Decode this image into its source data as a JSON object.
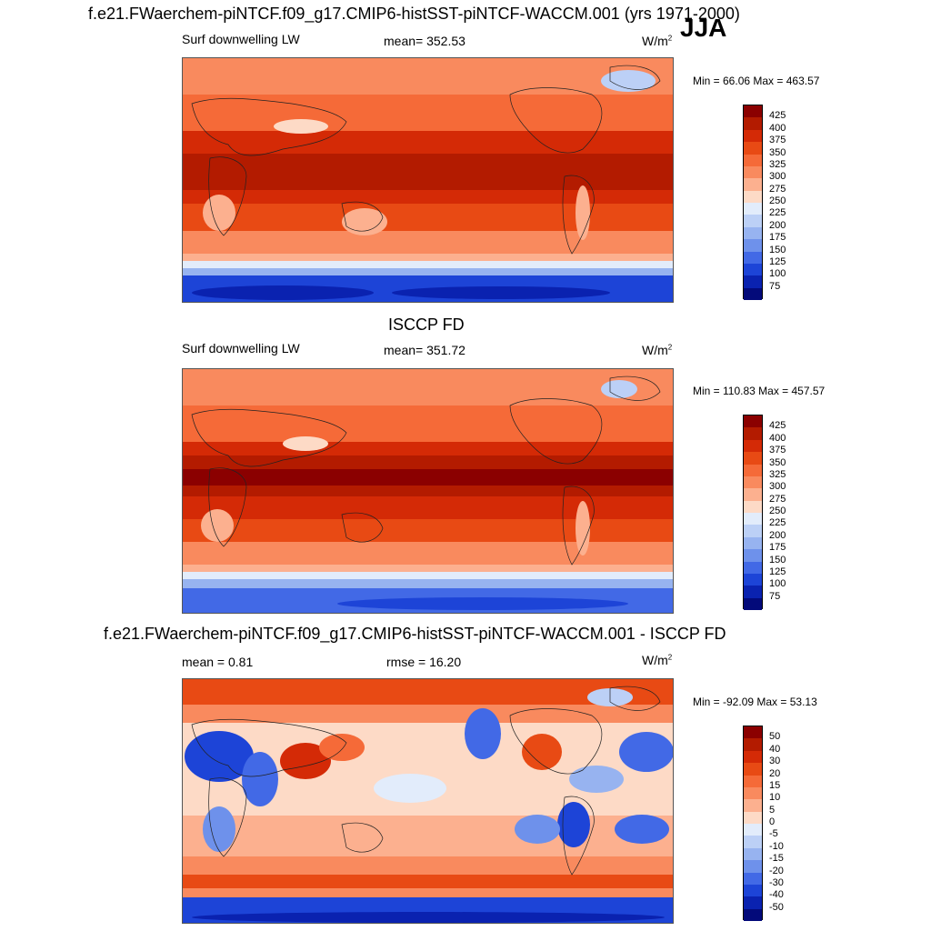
{
  "header": {
    "main_title": "f.e21.FWaerchem-piNTCF.f09_g17.CMIP6-histSST-piNTCF-WACCM.001 (yrs 1971-2000)",
    "season": "JJA"
  },
  "panels": [
    {
      "id": "model",
      "title": "",
      "left_label": "Surf downwelling LW",
      "center_label": "mean= 352.53",
      "units": "W/m",
      "units_sup": "2",
      "minmax": "Min =  66.06 Max = 463.57"
    },
    {
      "id": "obs",
      "title": "ISCCP FD",
      "left_label": "Surf downwelling LW",
      "center_label": "mean= 351.72",
      "units": "W/m",
      "units_sup": "2",
      "minmax": "Min = 110.83 Max = 457.57"
    },
    {
      "id": "diff",
      "title": "f.e21.FWaerchem-piNTCF.f09_g17.CMIP6-histSST-piNTCF-WACCM.001 - ISCCP FD",
      "left_label": "mean =   0.81",
      "center_label": "rmse =  16.20",
      "units": "W/m",
      "units_sup": "2",
      "minmax": "Min = -92.09 Max =  53.13"
    }
  ],
  "colorbars": {
    "absolute": {
      "labels": [
        "425",
        "400",
        "375",
        "350",
        "325",
        "300",
        "275",
        "250",
        "225",
        "200",
        "175",
        "150",
        "125",
        "100",
        "75"
      ],
      "colors": [
        "#8b0000",
        "#b31b00",
        "#d42a06",
        "#e84a14",
        "#f56a38",
        "#f98a5e",
        "#fcb08f",
        "#fddac6",
        "#e2ecfb",
        "#bcd0f6",
        "#97b3f0",
        "#6e91eb",
        "#4269e6",
        "#1d44d7",
        "#0a22b0",
        "#030a7a"
      ]
    },
    "difference": {
      "labels": [
        "50",
        "40",
        "30",
        "20",
        "15",
        "10",
        "5",
        "0",
        "-5",
        "-10",
        "-15",
        "-20",
        "-30",
        "-40",
        "-50"
      ],
      "colors": [
        "#8b0000",
        "#b31b00",
        "#d42a06",
        "#e84a14",
        "#f56a38",
        "#f98a5e",
        "#fcb08f",
        "#fddac6",
        "#e2ecfb",
        "#bcd0f6",
        "#97b3f0",
        "#6e91eb",
        "#4269e6",
        "#1d44d7",
        "#0a22b0",
        "#030a7a"
      ]
    }
  }
}
